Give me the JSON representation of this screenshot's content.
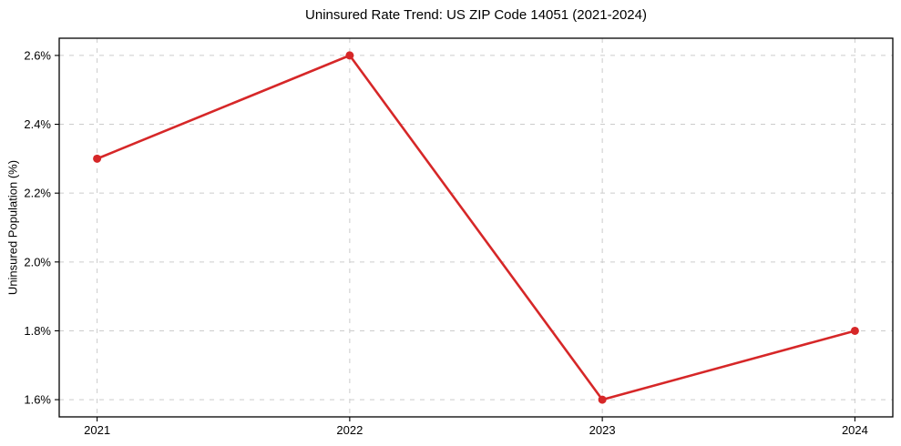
{
  "chart_data": {
    "type": "line",
    "title": "Uninsured Rate Trend: US ZIP Code 14051 (2021-2024)",
    "xlabel": "",
    "ylabel": "Uninsured Population (%)",
    "x": [
      2021,
      2022,
      2023,
      2024
    ],
    "x_tick_labels": [
      "2021",
      "2022",
      "2023",
      "2024"
    ],
    "series": [
      {
        "name": "Uninsured Population (%)",
        "values": [
          2.3,
          2.6,
          1.6,
          1.8
        ]
      }
    ],
    "y_ticks": [
      1.6,
      1.8,
      2.0,
      2.2,
      2.4,
      2.6
    ],
    "y_tick_labels": [
      "1.6%",
      "1.8%",
      "2.0%",
      "2.2%",
      "2.4%",
      "2.6%"
    ],
    "xlim": [
      2020.85,
      2024.15
    ],
    "ylim": [
      1.55,
      2.65
    ],
    "grid": true,
    "grid_style": "dashed",
    "legend": false,
    "colors": {
      "line": "#d62728",
      "marker": "#d62728",
      "grid": "#cccccc",
      "spine": "#000000",
      "background": "#ffffff",
      "text": "#000000"
    }
  }
}
